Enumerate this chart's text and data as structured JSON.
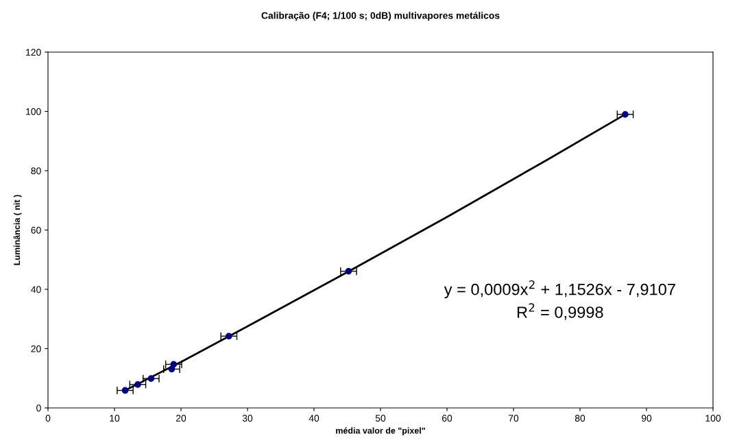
{
  "chart_data": {
    "type": "scatter",
    "title": "Calibração (F4; 1/100 s; 0dB) multivapores metálicos",
    "xlabel": "média valor de \"pixel\"",
    "ylabel": "Luminância ( nit )",
    "xlim": [
      0,
      100
    ],
    "xticks": [
      0,
      10,
      20,
      30,
      40,
      50,
      60,
      70,
      80,
      90,
      100
    ],
    "ylim": [
      0,
      120
    ],
    "yticks": [
      0,
      20,
      40,
      60,
      80,
      100,
      120
    ],
    "grid": false,
    "marker": "circle",
    "series": [
      {
        "color": "#000080",
        "x": [
          11.6,
          13.5,
          15.5,
          18.6,
          18.9,
          27.2,
          45.2,
          86.8
        ],
        "values": [
          5.9,
          7.9,
          9.9,
          13.1,
          14.7,
          24.2,
          46.1,
          99.0
        ],
        "xerrors": [
          1.2,
          1.2,
          1.2,
          1.2,
          1.2,
          1.2,
          1.2,
          1.2
        ]
      },
      {
        "type": "line",
        "color": "#000000",
        "marker": "none",
        "line_style": "solid",
        "x": [
          11.5,
          20,
          30,
          45,
          60,
          75,
          86.8
        ],
        "values": [
          5.8,
          15.5,
          27.5,
          45.8,
          64.4,
          83.6,
          99.0
        ]
      }
    ],
    "annotations": [
      "y = 0,0009x$^{2}$ + 1,1526x - 7,9107",
      "R$^{2}$ = 0,9998"
    ]
  }
}
